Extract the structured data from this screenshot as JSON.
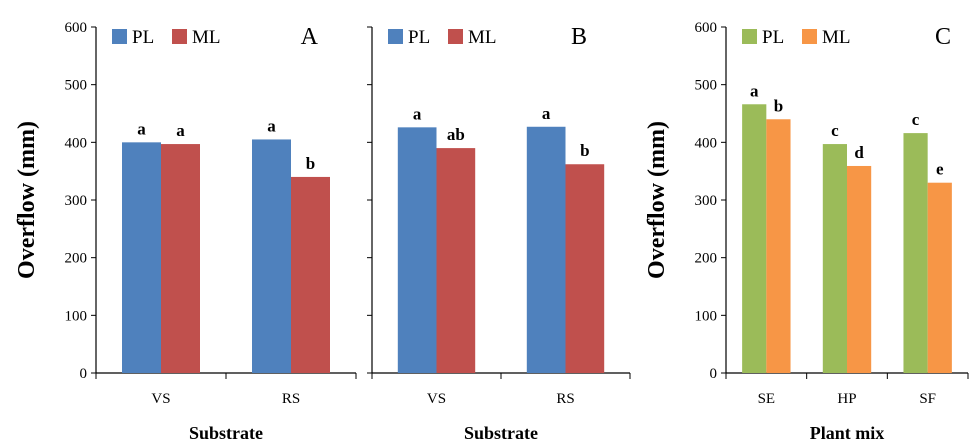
{
  "chart_data": [
    {
      "type": "bar",
      "panel": "A",
      "categories": [
        "VS",
        "RS"
      ],
      "series": [
        {
          "name": "PL",
          "values": [
            400,
            405
          ],
          "color": "#4f81bd",
          "labels": [
            "a",
            "a"
          ]
        },
        {
          "name": "ML",
          "values": [
            397,
            340
          ],
          "color": "#c0504d",
          "labels": [
            "a",
            "b"
          ]
        }
      ],
      "xlabel": "Substrate",
      "ylabel": "Overflow (mm)",
      "ylim": [
        0,
        600
      ],
      "yticks": [
        "0",
        "100",
        "200",
        "300",
        "400",
        "500",
        "600"
      ],
      "legend": "top-left",
      "grid": false
    },
    {
      "type": "bar",
      "panel": "B",
      "categories": [
        "VS",
        "RS"
      ],
      "series": [
        {
          "name": "PL",
          "values": [
            426,
            427
          ],
          "color": "#4f81bd",
          "labels": [
            "a",
            "a"
          ]
        },
        {
          "name": "ML",
          "values": [
            390,
            362
          ],
          "color": "#c0504d",
          "labels": [
            "ab",
            "b"
          ]
        }
      ],
      "xlabel": "Substrate",
      "ylabel": "",
      "ylim": [
        0,
        600
      ],
      "yticks": [],
      "legend": "top-left",
      "grid": false
    },
    {
      "type": "bar",
      "panel": "C",
      "categories": [
        "SE",
        "HP",
        "SF"
      ],
      "series": [
        {
          "name": "PL",
          "values": [
            466,
            397,
            416
          ],
          "color": "#9bbb59",
          "labels": [
            "a",
            "c",
            "c"
          ]
        },
        {
          "name": "ML",
          "values": [
            440,
            359,
            330
          ],
          "color": "#f79646",
          "labels": [
            "b",
            "d",
            "e"
          ]
        }
      ],
      "xlabel": "Plant mix",
      "ylabel": "Overflow (mm)",
      "ylim": [
        0,
        600
      ],
      "yticks": [
        "0",
        "100",
        "200",
        "300",
        "400",
        "500",
        "600"
      ],
      "legend": "top-left",
      "grid": false
    }
  ]
}
